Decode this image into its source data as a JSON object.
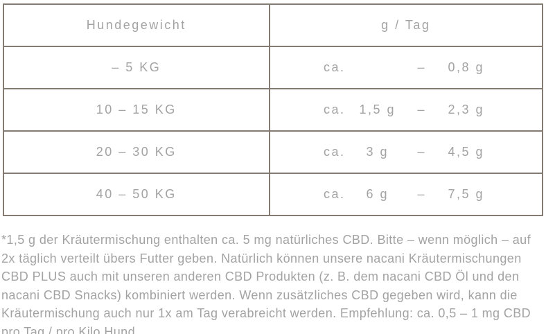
{
  "colors": {
    "border": "#847b73",
    "text": "#a3a3a3",
    "background": "#ffffff"
  },
  "table": {
    "columns": [
      {
        "header": "Hundegewicht"
      },
      {
        "header": "g / Tag"
      }
    ],
    "rows": [
      {
        "weight": "– 5 KG",
        "ca": "ca.",
        "min": "",
        "dash": "–",
        "max": "0,8 g"
      },
      {
        "weight": "10 – 15 KG",
        "ca": "ca.",
        "min": "1,5 g",
        "dash": "–",
        "max": "2,3 g"
      },
      {
        "weight": "20 – 30 KG",
        "ca": "ca.",
        "min": "3 g",
        "dash": "–",
        "max": "4,5 g"
      },
      {
        "weight": "40 – 50 KG",
        "ca": "ca.",
        "min": "6 g",
        "dash": "–",
        "max": "7,5 g"
      }
    ]
  },
  "footnote": "*1,5 g der Kräutermischung enthalten ca. 5 mg natürliches CBD. Bitte – wenn möglich – auf 2x täglich verteilt übers Futter geben. Natürlich können unsere nacani Kräutermischungen CBD PLUS auch mit unseren anderen CBD Produkten (z. B. dem nacani CBD Öl und den nacani CBD Snacks) kombiniert werden. Wenn zusätzliches CBD gegeben wird, kann die Kräutermischung auch nur 1x am Tag verabreicht werden. Empfehlung: ca. 0,5 – 1 mg CBD pro Tag / pro Kilo Hund."
}
